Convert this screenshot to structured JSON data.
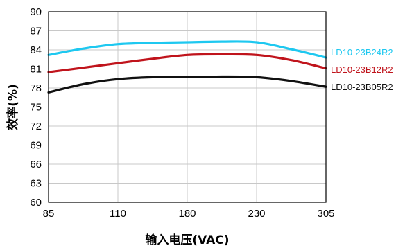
{
  "chart_data": {
    "type": "line",
    "title": "",
    "xlabel": "输入电压(VAC)",
    "ylabel": "效率(%)",
    "categories": [
      "85",
      "110",
      "180",
      "230",
      "305"
    ],
    "ylim": [
      60,
      90
    ],
    "yticks": [
      "60",
      "63",
      "66",
      "69",
      "72",
      "75",
      "78",
      "81",
      "84",
      "87",
      "90"
    ],
    "grid": true,
    "legend_placement": "right",
    "series": [
      {
        "name": "LD10-23B24R2",
        "color": "#1ec8f0",
        "values": [
          83.2,
          84.9,
          85.2,
          85.2,
          82.8
        ],
        "sample_x": [
          0,
          0.5,
          1,
          1.5,
          2,
          2.5,
          3,
          3.5,
          4
        ],
        "sample_y": [
          83.2,
          84.2,
          84.9,
          85.1,
          85.2,
          85.3,
          85.2,
          84.1,
          82.8
        ]
      },
      {
        "name": "LD10-23B12R2",
        "color": "#c0141c",
        "values": [
          80.5,
          81.9,
          83.2,
          83.2,
          81.1
        ],
        "sample_x": [
          0,
          0.5,
          1,
          1.5,
          2,
          2.5,
          3,
          3.5,
          4
        ],
        "sample_y": [
          80.5,
          81.2,
          81.9,
          82.6,
          83.2,
          83.3,
          83.2,
          82.4,
          81.1
        ]
      },
      {
        "name": "LD10-23B05R2",
        "color": "#111111",
        "values": [
          77.3,
          79.4,
          79.7,
          79.7,
          78.2
        ],
        "sample_x": [
          0,
          0.5,
          1,
          1.5,
          2,
          2.5,
          3,
          3.5,
          4
        ],
        "sample_y": [
          77.3,
          78.6,
          79.4,
          79.7,
          79.7,
          79.8,
          79.7,
          79.1,
          78.2
        ]
      }
    ]
  }
}
